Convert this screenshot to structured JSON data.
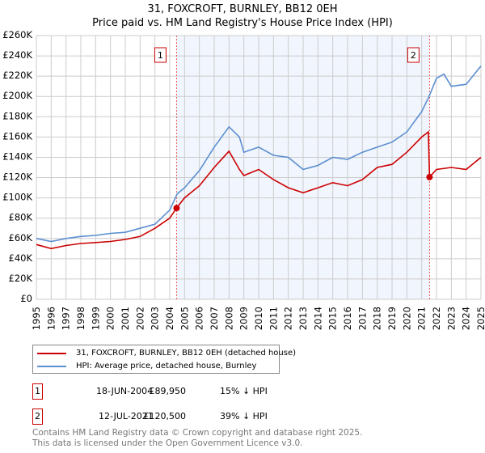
{
  "chart_data": {
    "type": "line",
    "title": "31, FOXCROFT, BURNLEY, BB12 0EH",
    "subtitle": "Price paid vs. HM Land Registry's House Price Index (HPI)",
    "xlim": [
      1995,
      2025
    ],
    "ylim": [
      0,
      260000
    ],
    "xticks": [
      "1995",
      "1996",
      "1997",
      "1998",
      "1999",
      "2000",
      "2001",
      "2002",
      "2003",
      "2004",
      "2005",
      "2006",
      "2007",
      "2008",
      "2009",
      "2010",
      "2011",
      "2012",
      "2013",
      "2014",
      "2015",
      "2016",
      "2017",
      "2018",
      "2019",
      "2020",
      "2021",
      "2022",
      "2023",
      "2024",
      "2025"
    ],
    "yticks": [
      {
        "v": 0,
        "l": "£0"
      },
      {
        "v": 20000,
        "l": "£20K"
      },
      {
        "v": 40000,
        "l": "£40K"
      },
      {
        "v": 60000,
        "l": "£60K"
      },
      {
        "v": 80000,
        "l": "£80K"
      },
      {
        "v": 100000,
        "l": "£100K"
      },
      {
        "v": 120000,
        "l": "£120K"
      },
      {
        "v": 140000,
        "l": "£140K"
      },
      {
        "v": 160000,
        "l": "£160K"
      },
      {
        "v": 180000,
        "l": "£180K"
      },
      {
        "v": 200000,
        "l": "£200K"
      },
      {
        "v": 220000,
        "l": "£220K"
      },
      {
        "v": 240000,
        "l": "£240K"
      },
      {
        "v": 260000,
        "l": "£260K"
      }
    ],
    "grid": true,
    "series": [
      {
        "name": "31, FOXCROFT, BURNLEY, BB12 0EH (detached house)",
        "color": "#cc0000",
        "x": [
          1995,
          1996,
          1997,
          1998,
          1999,
          2000,
          2001,
          2002,
          2003,
          2004,
          2004.46,
          2005,
          2006,
          2007,
          2008,
          2008.7,
          2009,
          2010,
          2011,
          2012,
          2013,
          2014,
          2015,
          2016,
          2017,
          2018,
          2019,
          2020,
          2021,
          2021.45,
          2021.53,
          2022,
          2023,
          2024,
          2025
        ],
        "y": [
          54000,
          50000,
          53000,
          55000,
          56000,
          57000,
          59000,
          62000,
          70000,
          80000,
          89950,
          100000,
          112000,
          130000,
          146000,
          128000,
          122000,
          128000,
          118000,
          110000,
          105000,
          110000,
          115000,
          112000,
          118000,
          130000,
          133000,
          145000,
          160000,
          165000,
          120500,
          128000,
          130000,
          128000,
          140000
        ]
      },
      {
        "name": "HPI: Average price, detached house, Burnley",
        "color": "#5b8fd0",
        "x": [
          1995,
          1996,
          1997,
          1998,
          1999,
          2000,
          2001,
          2002,
          2003,
          2004,
          2004.5,
          2005,
          2006,
          2007,
          2008,
          2008.7,
          2009,
          2010,
          2011,
          2012,
          2013,
          2014,
          2015,
          2016,
          2017,
          2018,
          2019,
          2020,
          2021,
          2021.5,
          2022,
          2022.5,
          2023,
          2024,
          2025
        ],
        "y": [
          60000,
          57000,
          60000,
          62000,
          63000,
          65000,
          66000,
          70000,
          74000,
          88000,
          104000,
          110000,
          127000,
          150000,
          170000,
          160000,
          145000,
          150000,
          142000,
          140000,
          128000,
          132000,
          140000,
          138000,
          145000,
          150000,
          155000,
          165000,
          185000,
          200000,
          218000,
          222000,
          210000,
          212000,
          230000
        ]
      }
    ],
    "annotations": [
      {
        "label": "1",
        "x": 2004.46,
        "date": "18-JUN-2004",
        "price": "£89,950",
        "hpi": "15% ↓ HPI",
        "value": 89950
      },
      {
        "label": "2",
        "x": 2021.53,
        "date": "12-JUL-2021",
        "price": "£120,500",
        "hpi": "39% ↓ HPI",
        "value": 120500
      }
    ],
    "legend_position": "below"
  },
  "footer": [
    "Contains HM Land Registry data © Crown copyright and database right 2025.",
    "This data is licensed under the Open Government Licence v3.0."
  ]
}
